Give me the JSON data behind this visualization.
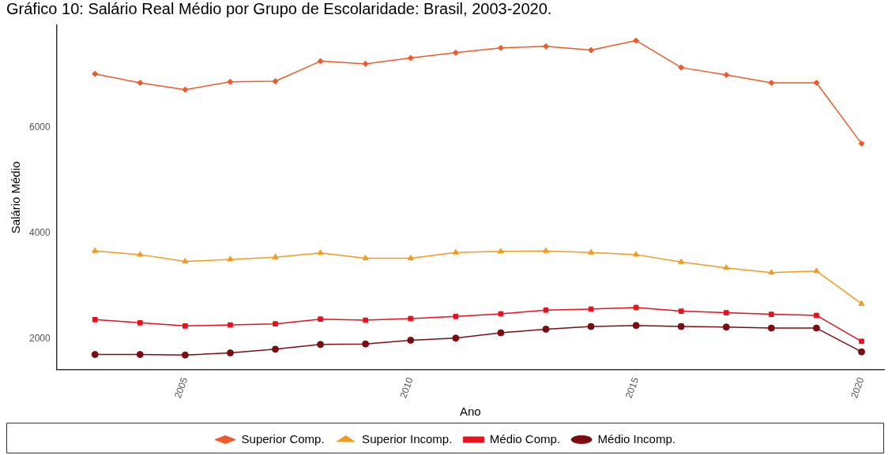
{
  "chart_data": {
    "type": "line",
    "title": "Gráfico 10: Salário Real Médio por Grupo de Escolaridade: Brasil, 2003-2020.",
    "xlabel": "Ano",
    "ylabel": "Salário Médio",
    "x": [
      2003,
      2004,
      2005,
      2006,
      2007,
      2008,
      2009,
      2010,
      2011,
      2012,
      2013,
      2014,
      2015,
      2016,
      2017,
      2018,
      2019,
      2020
    ],
    "xlim": [
      2002.15,
      2020.5
    ],
    "xticks": [
      2005,
      2010,
      2015,
      2020
    ],
    "ylim": [
      1410,
      7930
    ],
    "yticks": [
      2000,
      4000,
      6000
    ],
    "grid": false,
    "legend": "bottom",
    "line_style": "solid",
    "series": [
      {
        "name": "Superior Comp.",
        "color": "#f05a28",
        "marker": "diamond",
        "values": [
          7010,
          6840,
          6710,
          6860,
          6870,
          7250,
          7200,
          7310,
          7410,
          7500,
          7530,
          7460,
          7640,
          7130,
          6990,
          6840,
          6840,
          5690
        ]
      },
      {
        "name": "Superior Incomp.",
        "color": "#f39a1e",
        "marker": "triangle",
        "values": [
          3660,
          3590,
          3460,
          3500,
          3540,
          3620,
          3520,
          3520,
          3630,
          3650,
          3660,
          3630,
          3590,
          3450,
          3340,
          3250,
          3280,
          2660
        ]
      },
      {
        "name": "Médio Comp.",
        "color": "#e8101c",
        "marker": "square",
        "values": [
          2360,
          2300,
          2240,
          2260,
          2280,
          2370,
          2350,
          2380,
          2420,
          2470,
          2540,
          2560,
          2590,
          2520,
          2490,
          2460,
          2440,
          1950
        ]
      },
      {
        "name": "Médio Incomp.",
        "color": "#7b0d12",
        "marker": "circle",
        "values": [
          1700,
          1700,
          1690,
          1730,
          1800,
          1890,
          1900,
          1970,
          2010,
          2110,
          2180,
          2230,
          2250,
          2230,
          2220,
          2200,
          2200,
          1750
        ]
      }
    ]
  }
}
